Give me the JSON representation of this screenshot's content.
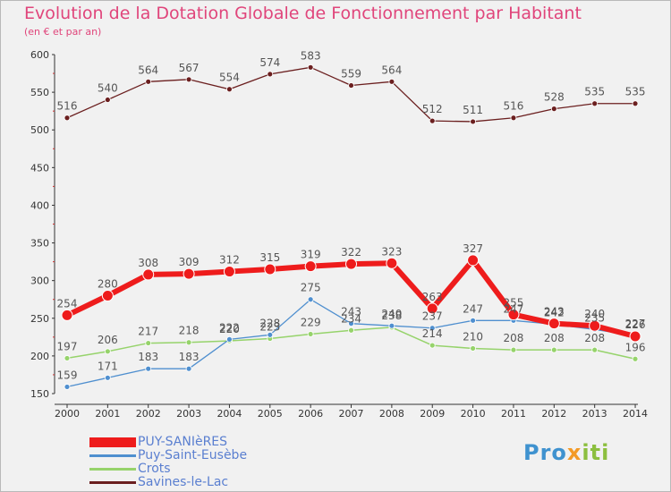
{
  "title": "Evolution de la Dotation Globale de Fonctionnement par Habitant",
  "subtitle": "(en € et par an)",
  "logo": {
    "parts": [
      "Pro",
      "x",
      "iti"
    ]
  },
  "colors": {
    "background": "#f1f1f1",
    "title": "#e0457b",
    "axis": "#333333",
    "legend_text": "#5a7fd0"
  },
  "chart_data": {
    "type": "line",
    "title": "Evolution de la Dotation Globale de Fonctionnement par Habitant",
    "subtitle": "(en € et par an)",
    "xlabel": "",
    "ylabel": "",
    "x": [
      "2000",
      "2001",
      "2002",
      "2003",
      "2004",
      "2005",
      "2006",
      "2007",
      "2008",
      "2009",
      "2010",
      "2011",
      "2012",
      "2013",
      "2014"
    ],
    "ylim": [
      150,
      600
    ],
    "yticks": [
      150,
      200,
      250,
      300,
      350,
      400,
      450,
      500,
      550,
      600
    ],
    "legend_position": "bottom-left",
    "series": [
      {
        "name": "Savines-le-Lac",
        "color": "#6b1f1f",
        "width": 1.3,
        "marker": 3,
        "values": [
          516,
          540,
          564,
          567,
          554,
          574,
          583,
          559,
          564,
          512,
          511,
          516,
          528,
          535,
          535
        ],
        "labels": [
          "516",
          "540",
          "564",
          "567",
          "554",
          "574",
          "583",
          "559",
          "564",
          "512",
          "511",
          "516",
          "528",
          "535",
          "535"
        ]
      },
      {
        "name": "Crots",
        "color": "#96d36b",
        "width": 1.5,
        "marker": 3,
        "values": [
          197,
          206,
          217,
          218,
          220,
          223,
          229,
          234,
          238,
          214,
          210,
          208,
          208,
          208,
          196
        ],
        "labels": [
          "197",
          "206",
          "217",
          "218",
          "220",
          "223",
          "229",
          "234",
          "238",
          "214",
          "210",
          "208",
          "208",
          "208",
          "196"
        ]
      },
      {
        "name": "Puy-Saint-Eusèbe",
        "color": "#4f8fcf",
        "width": 1.3,
        "marker": 3,
        "values": [
          159,
          171,
          183,
          183,
          222,
          228,
          275,
          243,
          240,
          237,
          247,
          247,
          242,
          235,
          227
        ],
        "labels": [
          "159",
          "171",
          "183",
          "183",
          "222",
          "228",
          "275",
          "243",
          "240",
          "237",
          "247",
          "247",
          "242",
          "235",
          "227"
        ]
      },
      {
        "name": "PUY-SANIèRES",
        "color": "#ee1c1c",
        "width": 6,
        "marker": 6,
        "values": [
          254,
          280,
          308,
          309,
          312,
          315,
          319,
          322,
          323,
          263,
          327,
          255,
          243,
          240,
          226
        ],
        "labels": [
          "254",
          "280",
          "308",
          "309",
          "312",
          "315",
          "319",
          "322",
          "323",
          "263",
          "327",
          "255",
          "243",
          "240",
          "226"
        ]
      }
    ],
    "legend_order": [
      "PUY-SANIèRES",
      "Puy-Saint-Eusèbe",
      "Crots",
      "Savines-le-Lac"
    ]
  }
}
